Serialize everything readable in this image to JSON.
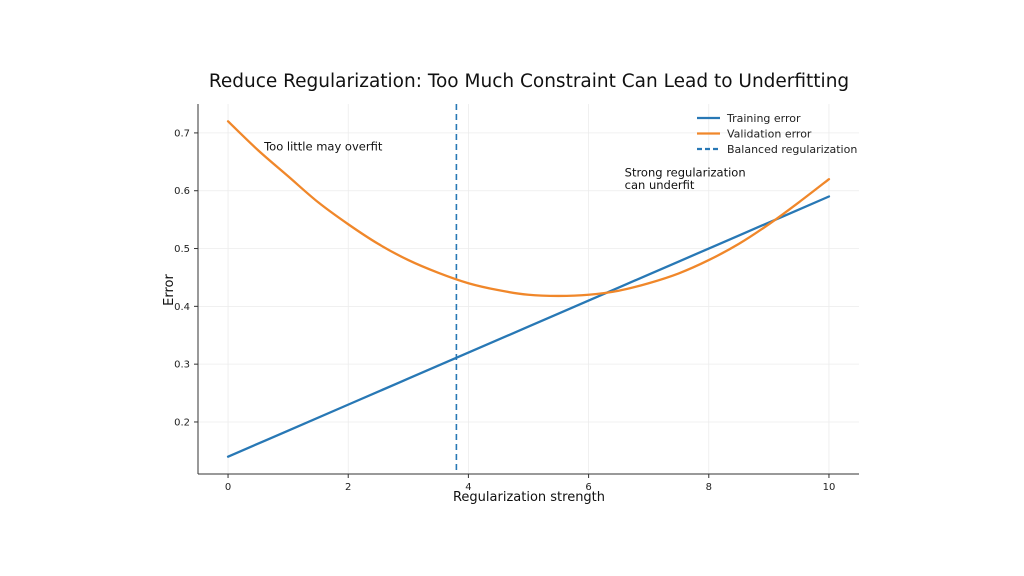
{
  "chart_data": {
    "type": "line",
    "title": "Reduce Regularization: Too Much Constraint Can Lead to Underfitting",
    "xlabel": "Regularization strength",
    "ylabel": "Error",
    "xlim": [
      -0.5,
      10.5
    ],
    "ylim": [
      0.11,
      0.75
    ],
    "xticks": [
      0,
      2,
      4,
      6,
      8,
      10
    ],
    "yticks": [
      0.2,
      0.3,
      0.4,
      0.5,
      0.6,
      0.7
    ],
    "grid": true,
    "legend_position": "top-right",
    "series": [
      {
        "name": "Training error",
        "color": "#2878b5",
        "style": "solid",
        "x": [
          0,
          1,
          2,
          3,
          4,
          5,
          6,
          7,
          8,
          9,
          10
        ],
        "y": [
          0.14,
          0.185,
          0.23,
          0.275,
          0.32,
          0.365,
          0.41,
          0.455,
          0.5,
          0.545,
          0.59
        ]
      },
      {
        "name": "Validation error",
        "color": "#f0872a",
        "style": "solid",
        "x": [
          0,
          0.5,
          1,
          1.5,
          2,
          2.5,
          3,
          3.5,
          4,
          4.5,
          5,
          5.5,
          6,
          6.5,
          7,
          7.5,
          8,
          8.5,
          9,
          9.5,
          10
        ],
        "y": [
          0.72,
          0.67,
          0.625,
          0.58,
          0.542,
          0.508,
          0.48,
          0.458,
          0.44,
          0.428,
          0.42,
          0.418,
          0.42,
          0.427,
          0.44,
          0.457,
          0.48,
          0.508,
          0.542,
          0.58,
          0.62
        ]
      }
    ],
    "vline": {
      "name": "Balanced regularization",
      "x": 3.8,
      "color": "#2878b5",
      "style": "dashed"
    },
    "annotations": [
      {
        "text": [
          "Too little may overfit"
        ],
        "x": 0.6,
        "y": 0.67
      },
      {
        "text": [
          "Strong regularization",
          "can underfit"
        ],
        "x": 6.6,
        "y": 0.625
      }
    ]
  }
}
